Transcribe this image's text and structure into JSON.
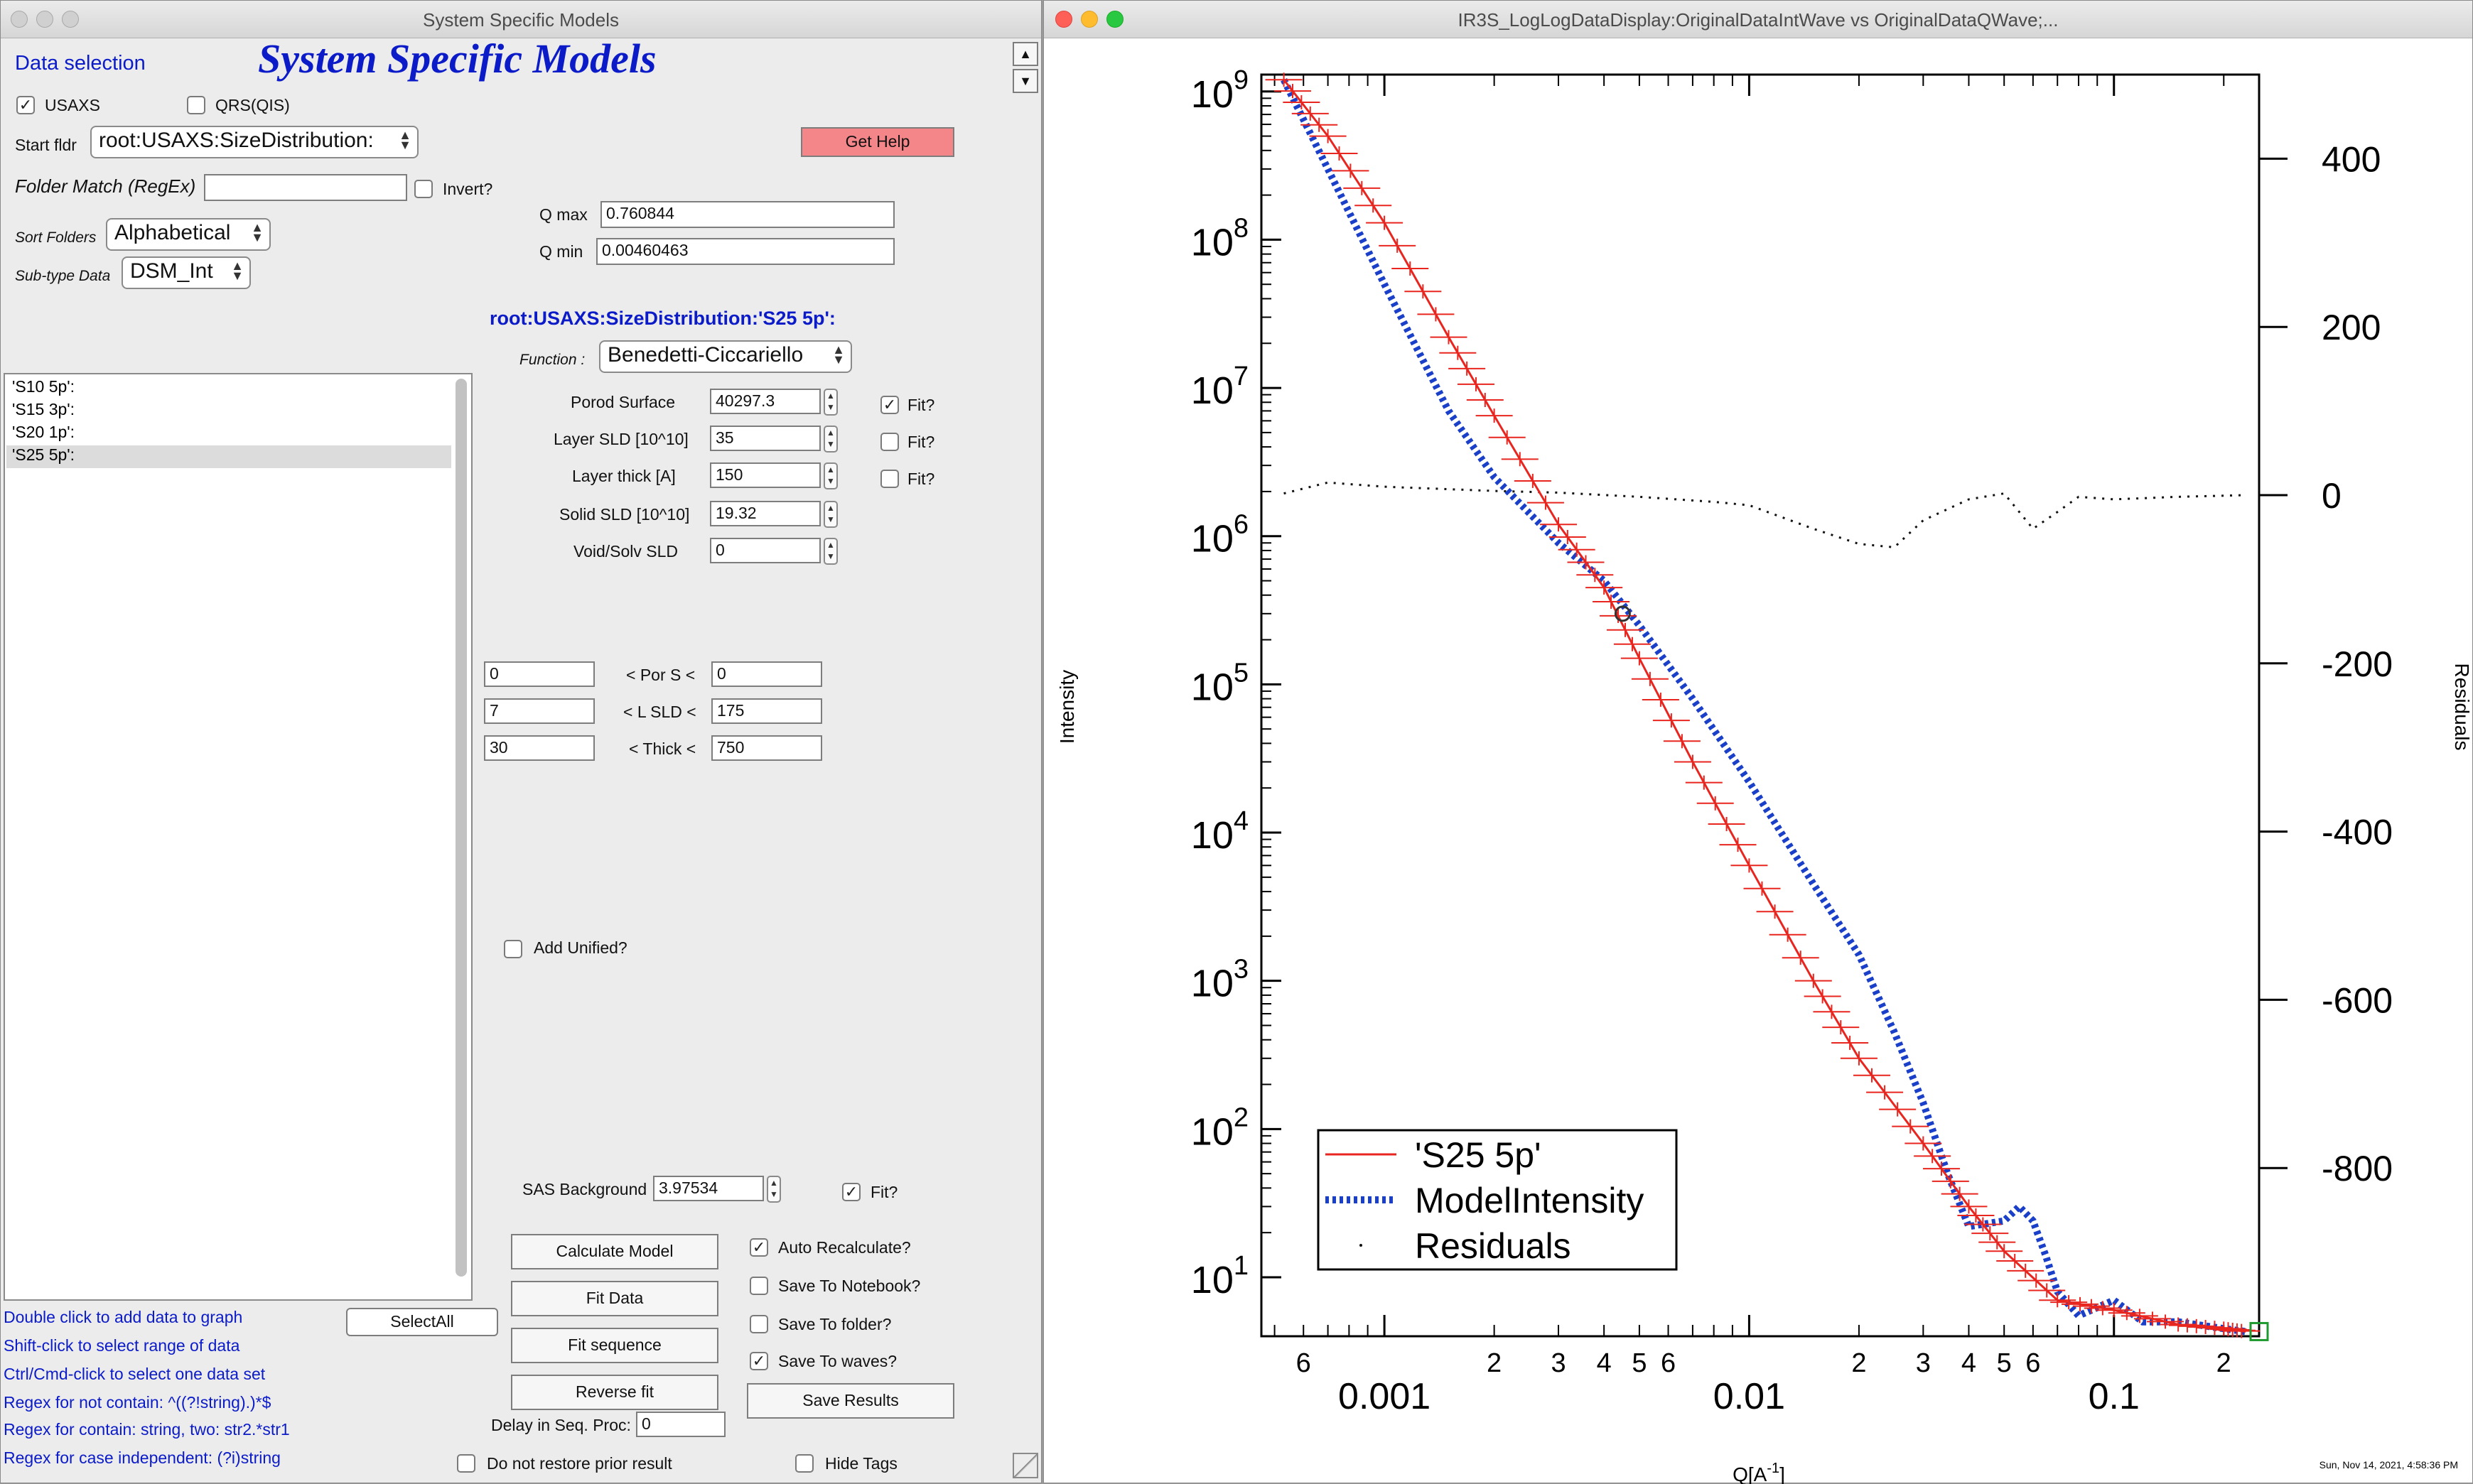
{
  "left": {
    "title": "System Specific Models",
    "data_selection": "Data selection",
    "panel_title": "System Specific Models",
    "usaxs": "USAXS",
    "qrs": "QRS(QIS)",
    "start_fldr_label": "Start fldr",
    "start_fldr_value": "root:USAXS:SizeDistribution:",
    "get_help": "Get Help",
    "folder_match_label": "Folder Match (RegEx)",
    "folder_match_value": "",
    "invert": "Invert?",
    "sort_label": "Sort Folders",
    "sort_value": "Alphabetical",
    "subtype_label": "Sub-type Data",
    "subtype_value": "DSM_Int",
    "qmax_label": "Q max",
    "qmax_value": "0.760844",
    "qmin_label": "Q min",
    "qmin_value": "0.00460463",
    "folder_path": "root:USAXS:SizeDistribution:'S25 5p':",
    "function_label": "Function :",
    "function_value": "Benedetti-Ciccariello",
    "folders": [
      "'S10 5p':",
      "'S15 3p':",
      "'S20 1p':",
      "'S25 5p':"
    ],
    "params": [
      {
        "label": "Porod Surface",
        "value": "40297.3",
        "fit": "Fit?",
        "fit_checked": true
      },
      {
        "label": "Layer SLD [10^10]",
        "value": "35",
        "fit": "Fit?",
        "fit_checked": false
      },
      {
        "label": "Layer thick [A]",
        "value": "150",
        "fit": "Fit?",
        "fit_checked": false
      },
      {
        "label": "Solid SLD [10^10]",
        "value": "19.32"
      },
      {
        "label": "Void/Solv SLD",
        "value": "0"
      }
    ],
    "limits": [
      {
        "low": "0",
        "label": "< Por S <",
        "high": "0"
      },
      {
        "low": "7",
        "label": "< L SLD <",
        "high": "175"
      },
      {
        "low": "30",
        "label": "< Thick <",
        "high": "750"
      }
    ],
    "add_unified": "Add Unified?",
    "sas_bg_label": "SAS Background",
    "sas_bg_value": "3.97534",
    "sas_bg_fit": "Fit?",
    "buttons": {
      "calc": "Calculate Model",
      "fit": "Fit Data",
      "fitseq": "Fit sequence",
      "reverse": "Reverse fit",
      "select_all": "SelectAll",
      "save_results": "Save Results"
    },
    "options": {
      "auto": "Auto Recalculate?",
      "notebook": "Save To Notebook?",
      "folder": "Save To folder?",
      "waves": "Save To waves?"
    },
    "delay_label": "Delay in Seq. Proc:",
    "delay_value": "0",
    "no_restore": "Do not restore prior result",
    "hide_tags": "Hide Tags",
    "hints": [
      "Double click to add data to graph",
      "Shift-click to select range of data",
      "Ctrl/Cmd-click to select one data set",
      "Regex for not contain: ^((?!string).)*$",
      "Regex for contain:  string, two: str2.*str1",
      "Regex for case independent:  (?i)string"
    ]
  },
  "graph": {
    "title": "IR3S_LogLogDataDisplay:OriginalDataIntWave vs OriginalDataQWave;...",
    "ylabel_left": "Intensity",
    "ylabel_right": "Residuals",
    "xlabel_base": "Q[A",
    "xlabel_sup": "-1",
    "xlabel_end": "]",
    "y_major_ticks": [
      "10",
      "10",
      "10",
      "10",
      "10",
      "10",
      "10",
      "10",
      "10"
    ],
    "y_exponents": [
      "1",
      "2",
      "3",
      "4",
      "5",
      "6",
      "7",
      "8",
      "9"
    ],
    "right_ticks": [
      "400",
      "200",
      "0",
      "-200",
      "-400",
      "-600",
      "-800"
    ],
    "x_major_labels": [
      "0.001",
      "0.01",
      "0.1"
    ],
    "x_minor_labels": [
      "6",
      "2",
      "3",
      "4",
      "5",
      "6",
      "2",
      "3",
      "4",
      "5",
      "6",
      "2"
    ],
    "legend": [
      "'S25 5p'",
      "ModelIntensity",
      "Residuals"
    ],
    "timestamp": "Sun, Nov 14, 2021, 4:58:36 PM"
  },
  "colors": {
    "data": "#e8261f",
    "model": "#1a3fc8",
    "residual": "#111111",
    "help_button": "#f4868a",
    "accent_text": "#0b1bc8"
  },
  "chart_data": {
    "type": "line",
    "title": "",
    "xlabel": "Q[A-1]",
    "ylabel": "Intensity",
    "y2label": "Residuals",
    "xscale": "log",
    "yscale": "log",
    "xlim": [
      0.00046,
      0.25
    ],
    "ylim": [
      4,
      1300000000.0
    ],
    "y2lim": [
      -1000,
      500
    ],
    "legend_position": "bottom-left",
    "series": [
      {
        "name": "'S25 5p'",
        "axis": "left",
        "style": "solid-with-errorbars",
        "x": [
          0.00053,
          0.0007,
          0.001,
          0.0015,
          0.002,
          0.003,
          0.004,
          0.005,
          0.007,
          0.01,
          0.015,
          0.02,
          0.03,
          0.04,
          0.05,
          0.07,
          0.1,
          0.15,
          0.2,
          0.23
        ],
        "y": [
          1200000000.0,
          500000000.0,
          130000000.0,
          22000000.0,
          6500000.0,
          1200000.0,
          450000.0,
          150000.0,
          30000.0,
          6000,
          1000,
          300,
          80,
          30,
          15,
          7,
          6,
          4.8,
          4.5,
          4.3
        ]
      },
      {
        "name": "ModelIntensity",
        "axis": "left",
        "style": "dotted",
        "x": [
          0.00053,
          0.0007,
          0.001,
          0.0015,
          0.002,
          0.003,
          0.004,
          0.005,
          0.007,
          0.01,
          0.015,
          0.02,
          0.025,
          0.03,
          0.035,
          0.04,
          0.05,
          0.055,
          0.06,
          0.065,
          0.07,
          0.08,
          0.1,
          0.12,
          0.15,
          0.2,
          0.23
        ],
        "y": [
          1200000000.0,
          300000000.0,
          50000000.0,
          7000000.0,
          2500000.0,
          900000.0,
          500000.0,
          250000.0,
          80000.0,
          22000.0,
          4500,
          1500,
          450,
          150,
          50,
          22,
          24,
          30,
          24,
          14,
          8,
          5.5,
          7,
          5,
          5,
          4.5,
          4.3
        ]
      },
      {
        "name": "Residuals",
        "axis": "right",
        "style": "dots",
        "x": [
          0.00053,
          0.0007,
          0.001,
          0.002,
          0.003,
          0.005,
          0.008,
          0.01,
          0.015,
          0.02,
          0.025,
          0.03,
          0.04,
          0.05,
          0.06,
          0.07,
          0.08,
          0.1,
          0.15,
          0.23
        ],
        "y": [
          2,
          15,
          10,
          5,
          3,
          -2,
          -8,
          -12,
          -40,
          -58,
          -62,
          -30,
          -5,
          2,
          -40,
          -20,
          -2,
          -5,
          -2,
          0
        ]
      }
    ]
  }
}
